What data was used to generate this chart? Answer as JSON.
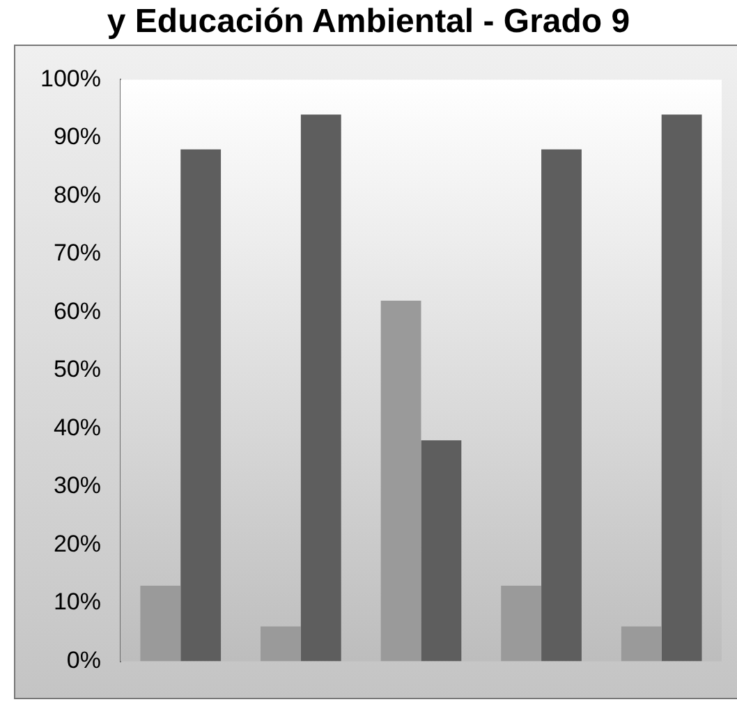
{
  "chart_data": {
    "type": "bar",
    "title": "y Educación Ambiental - Grado 9",
    "categories": [
      null,
      null,
      null,
      null,
      null
    ],
    "series": [
      {
        "color": "#9a9a9a",
        "values": [
          13,
          6,
          62,
          13,
          6
        ]
      },
      {
        "color": "#5e5e5e",
        "values": [
          88,
          94,
          38,
          88,
          94
        ]
      }
    ],
    "ylim": [
      0,
      100
    ],
    "yticks": [
      {
        "value": 0,
        "label": "0%"
      },
      {
        "value": 10,
        "label": "10%"
      },
      {
        "value": 20,
        "label": "20%"
      },
      {
        "value": 30,
        "label": "30%"
      },
      {
        "value": 40,
        "label": "40%"
      },
      {
        "value": 50,
        "label": "50%"
      },
      {
        "value": 60,
        "label": "60%"
      },
      {
        "value": 70,
        "label": "70%"
      },
      {
        "value": 80,
        "label": "80%"
      },
      {
        "value": 90,
        "label": "90%"
      },
      {
        "value": 100,
        "label": "100%"
      }
    ],
    "grid": false,
    "legend": false
  }
}
